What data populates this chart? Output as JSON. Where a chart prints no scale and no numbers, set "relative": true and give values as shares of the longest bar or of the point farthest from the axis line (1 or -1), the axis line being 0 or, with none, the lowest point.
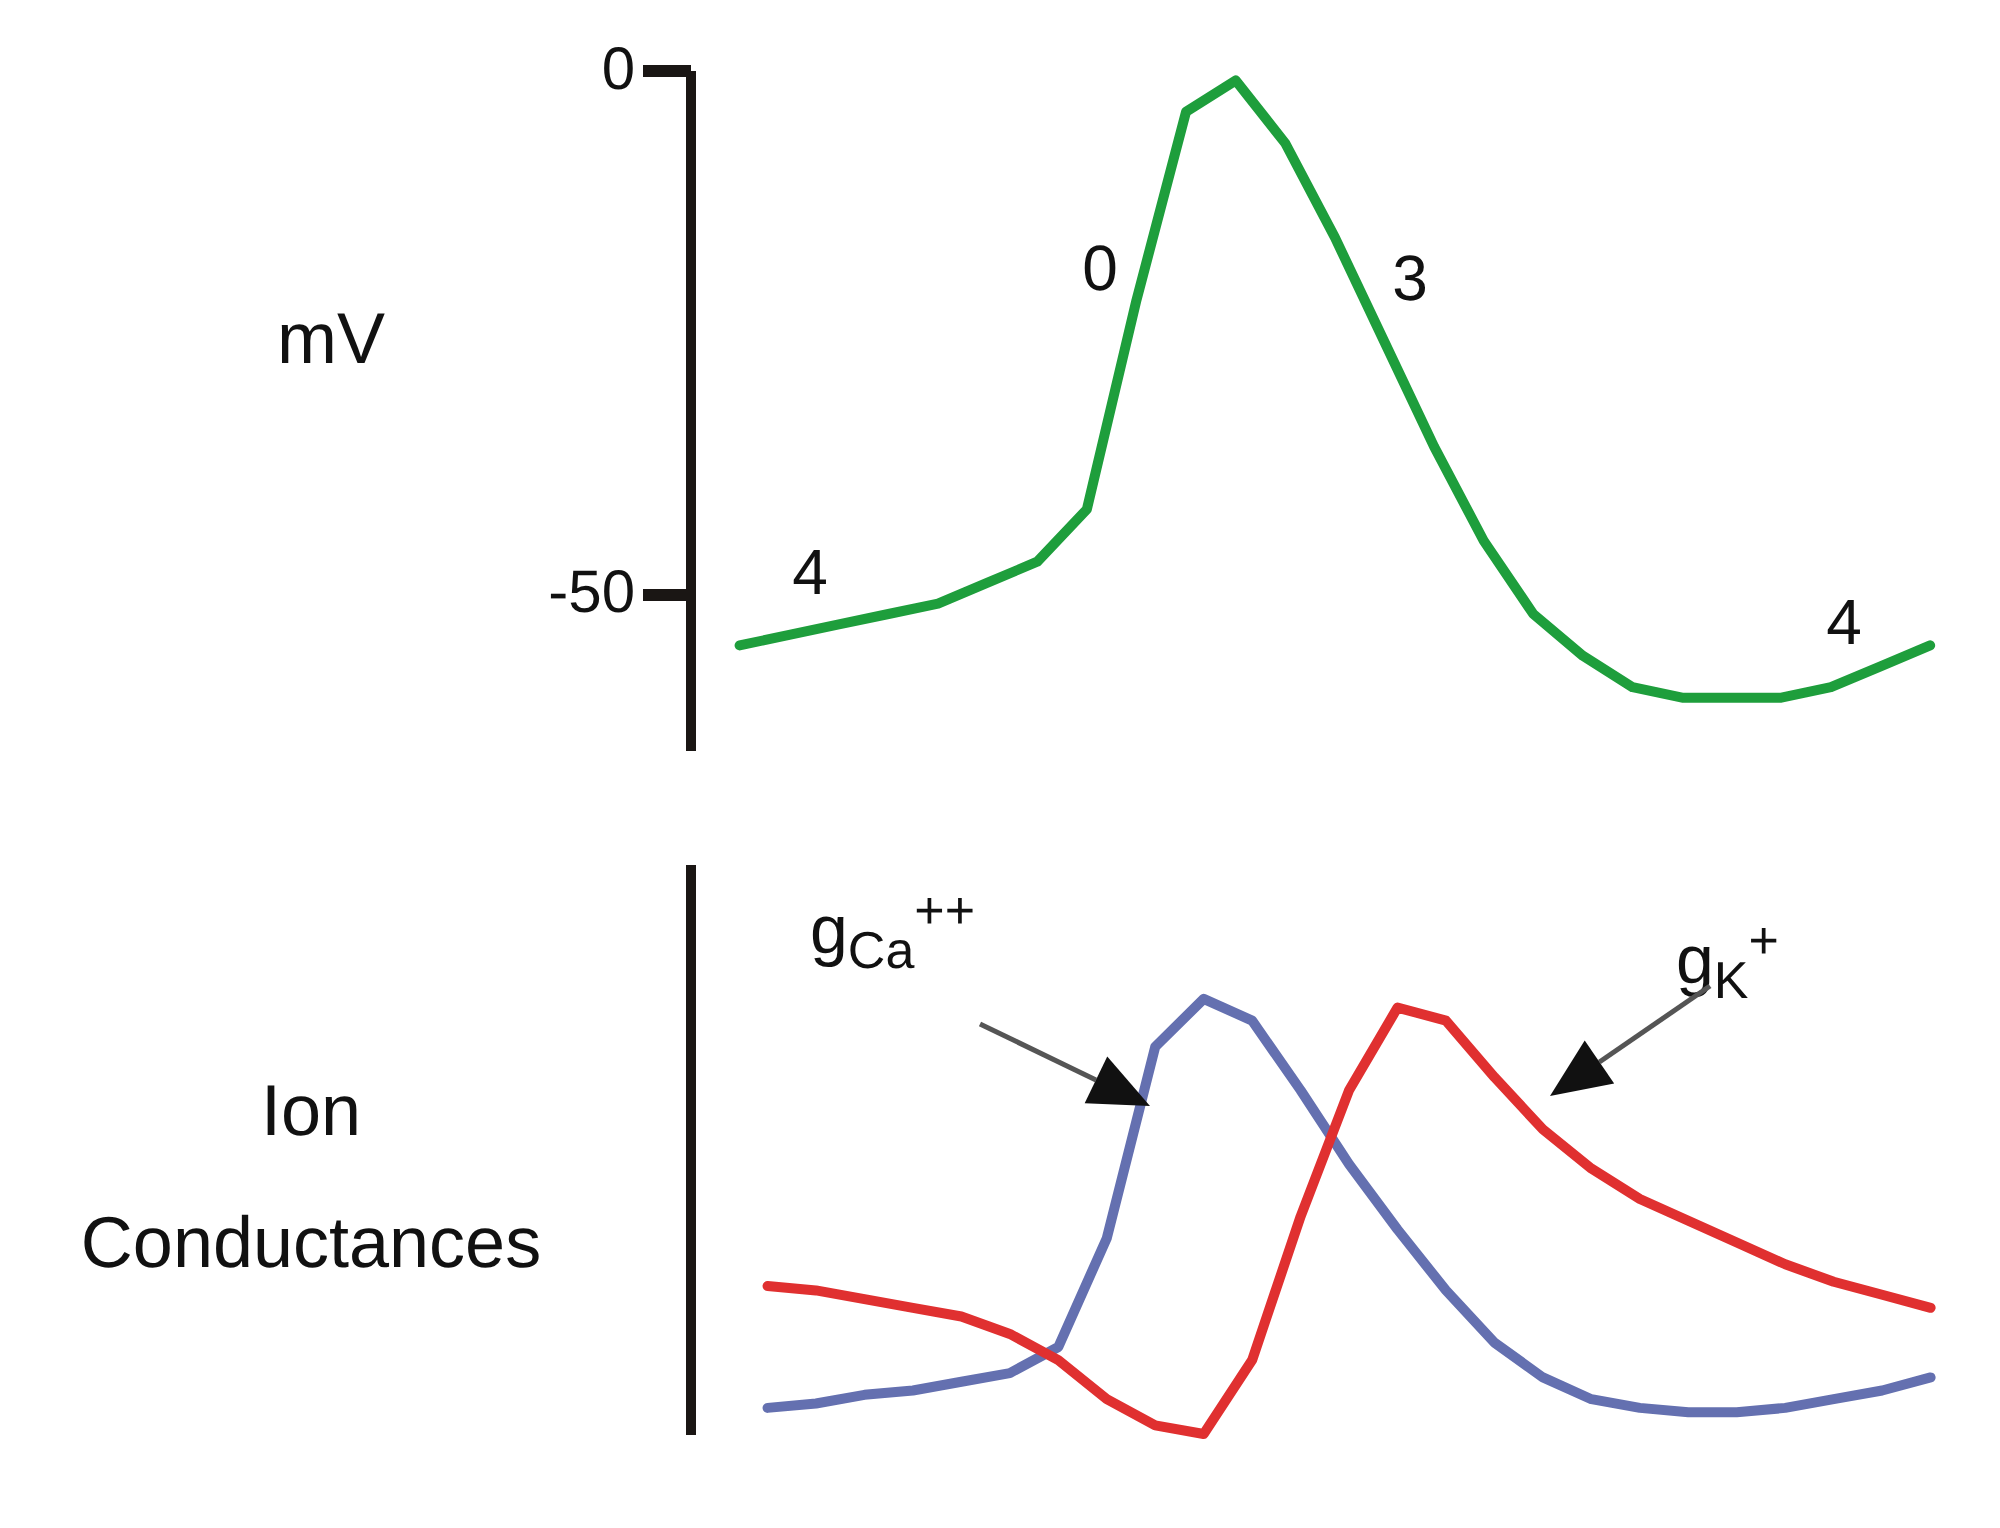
{
  "chart_data": [
    {
      "type": "line",
      "ylabel": "mV",
      "ylim": [
        -65,
        0
      ],
      "yticks": [
        -50,
        0
      ],
      "categories": [
        null,
        null,
        null,
        null,
        null,
        null,
        null,
        null,
        null,
        null,
        null,
        null,
        null,
        null,
        null,
        null,
        null,
        null,
        null,
        null,
        null,
        null,
        null,
        null,
        null
      ],
      "series": [
        {
          "color": "#1e9e3c",
          "values": [
            -55,
            -54,
            -53,
            -52,
            -51,
            -49,
            -47,
            -42,
            -22,
            -4,
            -1,
            -7,
            -16,
            -26,
            -36,
            -45,
            -52,
            -56,
            -59,
            -60,
            -60,
            -60,
            -59,
            -57,
            -55
          ]
        }
      ],
      "annotations": [
        "4",
        "0",
        "3",
        "4"
      ]
    },
    {
      "type": "line",
      "ylabel": "Ion Conductances",
      "relative": true,
      "categories": [
        null,
        null,
        null,
        null,
        null,
        null,
        null,
        null,
        null,
        null,
        null,
        null,
        null,
        null,
        null,
        null,
        null,
        null,
        null,
        null,
        null,
        null,
        null,
        null,
        null
      ],
      "series": [
        {
          "name": "g$_{Ca}$$^{++}$",
          "color": "#6470b0",
          "values": [
            0.06,
            0.07,
            0.09,
            0.1,
            0.12,
            0.14,
            0.2,
            0.45,
            0.89,
            1.0,
            0.95,
            0.79,
            0.62,
            0.47,
            0.33,
            0.21,
            0.13,
            0.08,
            0.06,
            0.05,
            0.05,
            0.06,
            0.08,
            0.1,
            0.13
          ]
        },
        {
          "name": "g$_{K}$$^{+}$",
          "color": "#e03030",
          "values": [
            0.34,
            0.33,
            0.31,
            0.29,
            0.27,
            0.23,
            0.17,
            0.08,
            0.02,
            0.0,
            0.17,
            0.5,
            0.79,
            0.98,
            0.95,
            0.82,
            0.7,
            0.61,
            0.54,
            0.49,
            0.44,
            0.39,
            0.35,
            0.32,
            0.29
          ]
        }
      ]
    }
  ]
}
